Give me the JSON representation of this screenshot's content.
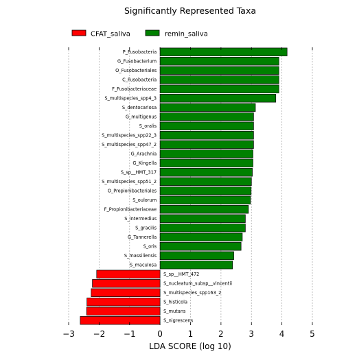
{
  "chart_data": {
    "type": "bar",
    "orientation": "horizontal",
    "title": "Significantly Represented Taxa",
    "xlabel": "LDA SCORE (log 10)",
    "ylabel": "",
    "xlim": [
      -3,
      5
    ],
    "xticks": [
      "−3",
      "−2",
      "−1",
      "0",
      "1",
      "2",
      "3",
      "4",
      "5"
    ],
    "xtick_values": [
      -3,
      -2,
      -1,
      0,
      1,
      2,
      3,
      4,
      5
    ],
    "grid": "vertical dashed",
    "legend_position": "top-left",
    "series": [
      {
        "name": "CFAT_saliva",
        "color": "#ff0000"
      },
      {
        "name": "remin_saliva",
        "color": "#008000"
      }
    ],
    "bars": [
      {
        "label": "P_Fusobacteria",
        "value": 4.17,
        "group": "remin_saliva"
      },
      {
        "label": "G_Fusobacterium",
        "value": 3.9,
        "group": "remin_saliva"
      },
      {
        "label": "O_Fusobacteriales",
        "value": 3.9,
        "group": "remin_saliva"
      },
      {
        "label": "C_Fusobacteria",
        "value": 3.9,
        "group": "remin_saliva"
      },
      {
        "label": "F_Fusobacteriaceae",
        "value": 3.9,
        "group": "remin_saliva"
      },
      {
        "label": "S_multispecies_spp4_3",
        "value": 3.8,
        "group": "remin_saliva"
      },
      {
        "label": "S_dentocariosa",
        "value": 3.13,
        "group": "remin_saliva"
      },
      {
        "label": "G_multigenus",
        "value": 3.07,
        "group": "remin_saliva"
      },
      {
        "label": "S_oralis",
        "value": 3.07,
        "group": "remin_saliva"
      },
      {
        "label": "S_multispecies_spp22_3",
        "value": 3.07,
        "group": "remin_saliva"
      },
      {
        "label": "S_multispecies_spp47_2",
        "value": 3.07,
        "group": "remin_saliva"
      },
      {
        "label": "G_Arachnia",
        "value": 3.05,
        "group": "remin_saliva"
      },
      {
        "label": "G_Kingella",
        "value": 3.05,
        "group": "remin_saliva"
      },
      {
        "label": "S_sp__HMT_317",
        "value": 3.03,
        "group": "remin_saliva"
      },
      {
        "label": "S_multispecies_spp51_2",
        "value": 3.0,
        "group": "remin_saliva"
      },
      {
        "label": "O_Propionibacteriales",
        "value": 2.99,
        "group": "remin_saliva"
      },
      {
        "label": "S_oulorum",
        "value": 2.97,
        "group": "remin_saliva"
      },
      {
        "label": "F_Propionibacteriaceae",
        "value": 2.9,
        "group": "remin_saliva"
      },
      {
        "label": "S_intermedius",
        "value": 2.8,
        "group": "remin_saliva"
      },
      {
        "label": "S_gracilis",
        "value": 2.8,
        "group": "remin_saliva"
      },
      {
        "label": "G_Tannerella",
        "value": 2.7,
        "group": "remin_saliva"
      },
      {
        "label": "S_oris",
        "value": 2.66,
        "group": "remin_saliva"
      },
      {
        "label": "S_massiliensis",
        "value": 2.42,
        "group": "remin_saliva"
      },
      {
        "label": "S_maculosa",
        "value": 2.38,
        "group": "remin_saliva"
      },
      {
        "label": "S_sp__HMT_472",
        "value": -2.08,
        "group": "CFAT_saliva"
      },
      {
        "label": "S_nucleatum_subsp__vincentii",
        "value": -2.22,
        "group": "CFAT_saliva"
      },
      {
        "label": "S_multispecies_spp163_2",
        "value": -2.26,
        "group": "CFAT_saliva"
      },
      {
        "label": "S_histicola",
        "value": -2.4,
        "group": "CFAT_saliva"
      },
      {
        "label": "S_mutans",
        "value": -2.41,
        "group": "CFAT_saliva"
      },
      {
        "label": "S_nigrescens",
        "value": -2.62,
        "group": "CFAT_saliva"
      }
    ]
  }
}
